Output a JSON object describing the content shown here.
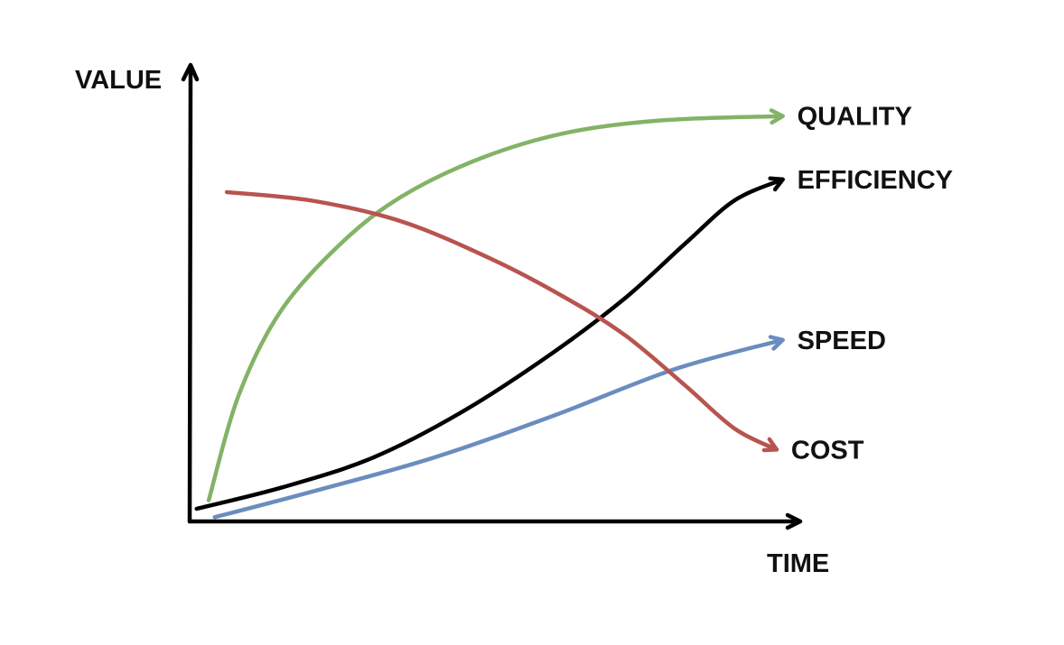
{
  "chart_data": {
    "type": "line",
    "xlabel": "TIME",
    "ylabel": "VALUE",
    "xlim": [
      0,
      1
    ],
    "ylim": [
      0,
      1
    ],
    "grid": false,
    "legend": "inline labels at line ends",
    "ticks": "none",
    "series": [
      {
        "name": "QUALITY",
        "color": "#83b366",
        "x": [
          0.03,
          0.08,
          0.15,
          0.25,
          0.35,
          0.48,
          0.62,
          0.78,
          0.98
        ],
        "y": [
          0.05,
          0.3,
          0.5,
          0.66,
          0.77,
          0.86,
          0.92,
          0.95,
          0.96
        ]
      },
      {
        "name": "EFFICIENCY",
        "color": "#000000",
        "x": [
          0.01,
          0.15,
          0.3,
          0.45,
          0.6,
          0.72,
          0.82,
          0.9,
          0.98
        ],
        "y": [
          0.03,
          0.08,
          0.15,
          0.26,
          0.4,
          0.53,
          0.66,
          0.76,
          0.81
        ]
      },
      {
        "name": "SPEED",
        "color": "#6b8cbe",
        "x": [
          0.04,
          0.2,
          0.4,
          0.6,
          0.8,
          0.98
        ],
        "y": [
          0.01,
          0.07,
          0.15,
          0.25,
          0.36,
          0.43
        ]
      },
      {
        "name": "COST",
        "color": "#b85450",
        "x": [
          0.06,
          0.2,
          0.35,
          0.5,
          0.62,
          0.72,
          0.82,
          0.9,
          0.97
        ],
        "y": [
          0.78,
          0.76,
          0.71,
          0.62,
          0.53,
          0.44,
          0.32,
          0.22,
          0.17
        ]
      }
    ]
  }
}
